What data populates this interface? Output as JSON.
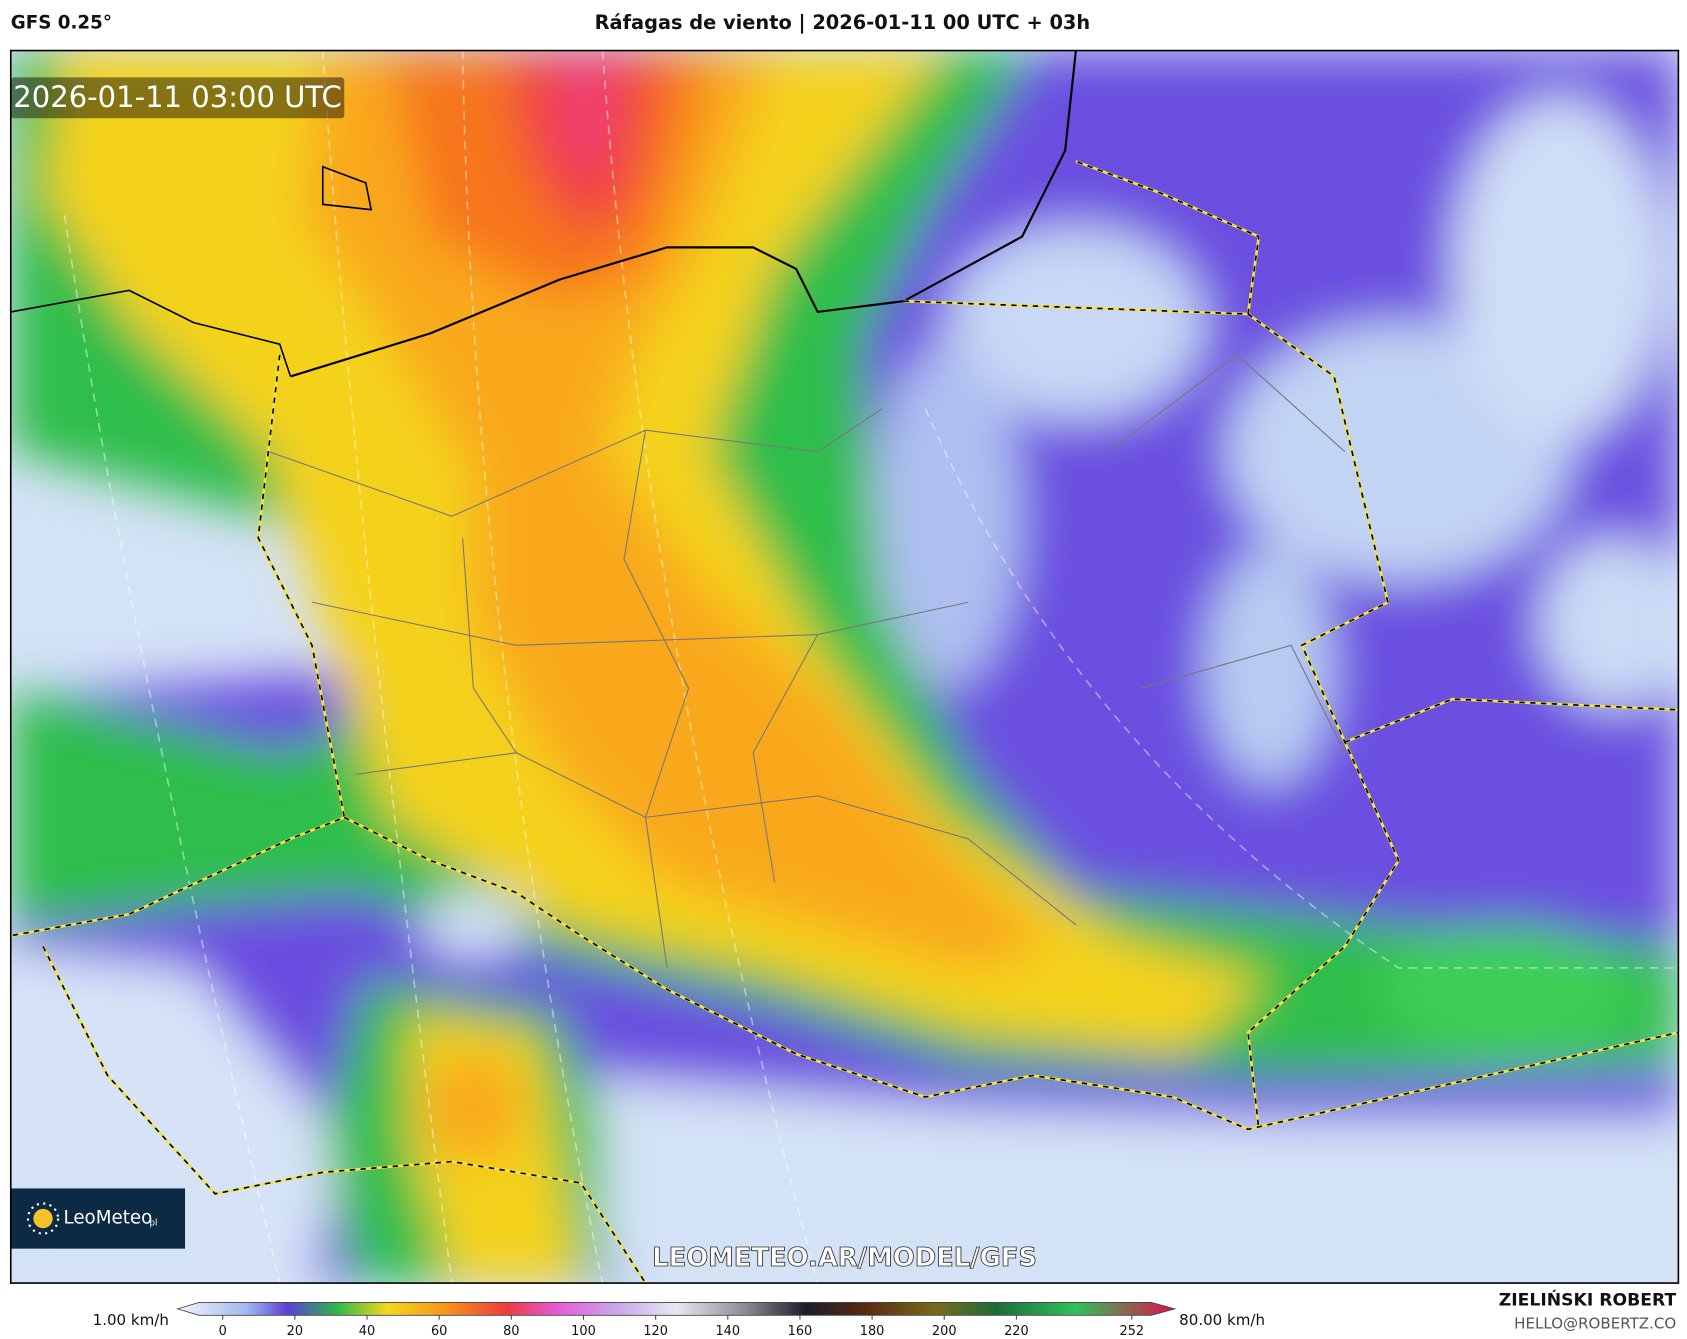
{
  "header": {
    "model": "GFS 0.25°",
    "title": "Ráfagas de viento | 2026-01-11 00 UTC + 03h"
  },
  "map": {
    "timestamp": "2026-01-11 03:00 UTC",
    "watermark": "LEOMETEO.AR/MODEL/GFS",
    "logo": "LeoMeteo",
    "logo_suffix": "pl"
  },
  "footer": {
    "author": "ZIELIŃSKI ROBERT",
    "email": "HELLO@ROBERTZ.CO"
  },
  "colorbar": {
    "min_label": "1.00 km/h",
    "max_label": "80.00 km/h",
    "ticks": [
      0,
      20,
      40,
      60,
      80,
      100,
      120,
      140,
      160,
      180,
      200,
      220,
      252
    ]
  }
}
